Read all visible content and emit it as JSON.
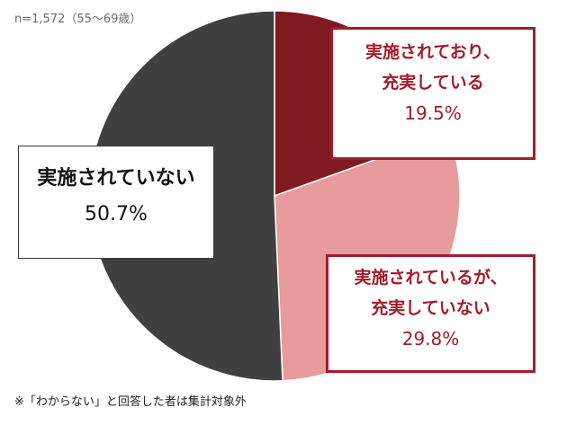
{
  "sample_note": "n=1,572（55～69歳）",
  "footnote": "※「わからない」と回答した者は集計対象外",
  "chart_data": {
    "type": "pie",
    "start": "12 o'clock, clockwise",
    "categories": [
      {
        "label": [
          "実施されており、",
          "充実している"
        ],
        "value_label": "19.5%",
        "value": 19.5,
        "color": "#7f1b20"
      },
      {
        "label": [
          "実施されているが、",
          "充実していない"
        ],
        "value_label": "29.8%",
        "value": 29.8,
        "color": "#e89a9c"
      },
      {
        "label": [
          "実施されていない"
        ],
        "value_label": "50.7%",
        "value": 50.7,
        "color": "#404040"
      }
    ]
  }
}
